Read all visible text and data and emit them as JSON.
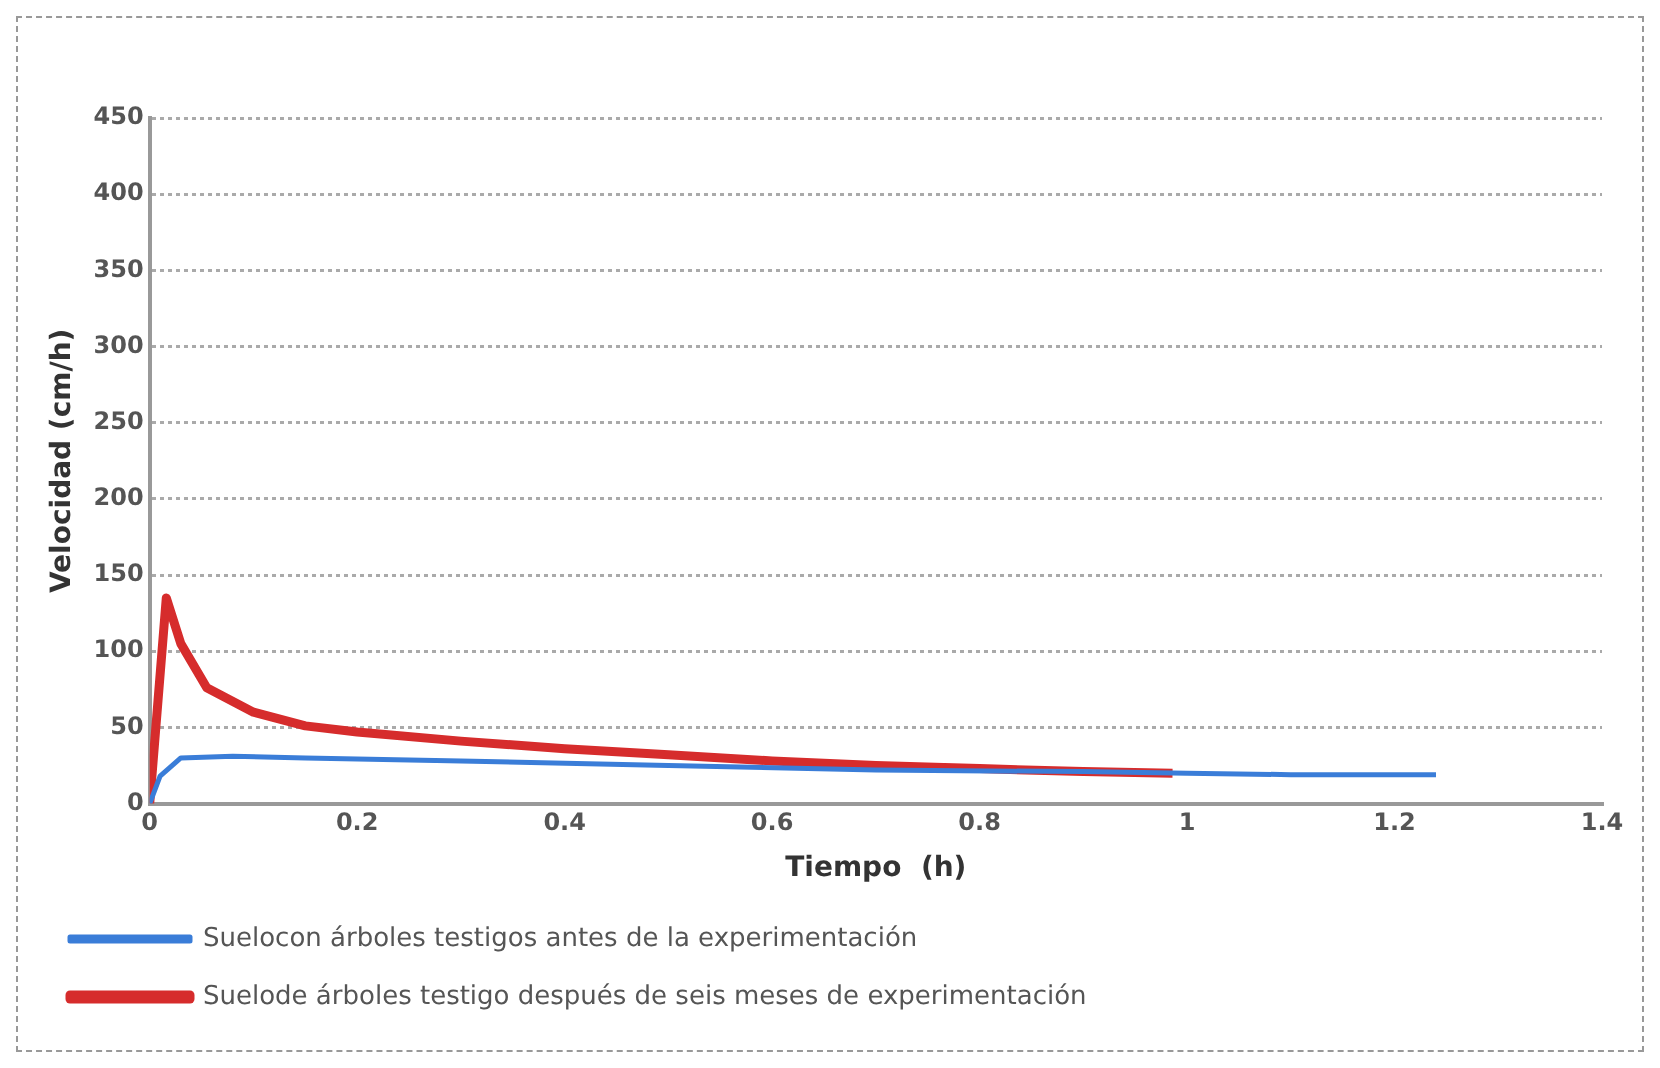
{
  "chart_data": {
    "type": "line",
    "xlabel": "Tiempo  (h)",
    "ylabel": "Velocidad (cm/h)",
    "xlim": [
      0,
      1.4
    ],
    "xticks": [
      0,
      0.2,
      0.4,
      0.6,
      0.8,
      1,
      1.2,
      1.4
    ],
    "ylim": [
      0,
      450
    ],
    "yticks": [
      0,
      50,
      100,
      150,
      200,
      250,
      300,
      350,
      400,
      450
    ],
    "grid": "y",
    "legend": "bottom",
    "marker": "none",
    "line_style": "solid",
    "series": [
      {
        "name": "Suelocon árboles testigos antes de la experimentación",
        "color": "#3a7dd8",
        "x": [
          0,
          0.01,
          0.03,
          0.08,
          0.15,
          0.3,
          0.5,
          0.7,
          0.9,
          1.0,
          1.1,
          1.24
        ],
        "values": [
          0,
          18,
          30,
          31,
          30,
          28,
          25,
          22,
          21,
          20,
          19,
          19
        ]
      },
      {
        "name": "Suelode árboles testigo después de seis meses de experimentación",
        "color": "#d62c2c",
        "x": [
          0,
          0.016,
          0.03,
          0.055,
          0.1,
          0.15,
          0.2,
          0.3,
          0.4,
          0.5,
          0.6,
          0.7,
          0.8,
          0.9,
          0.986
        ],
        "values": [
          0,
          135,
          105,
          76,
          60,
          51,
          47,
          41,
          36,
          32,
          28,
          25,
          23,
          21,
          20
        ]
      }
    ]
  }
}
